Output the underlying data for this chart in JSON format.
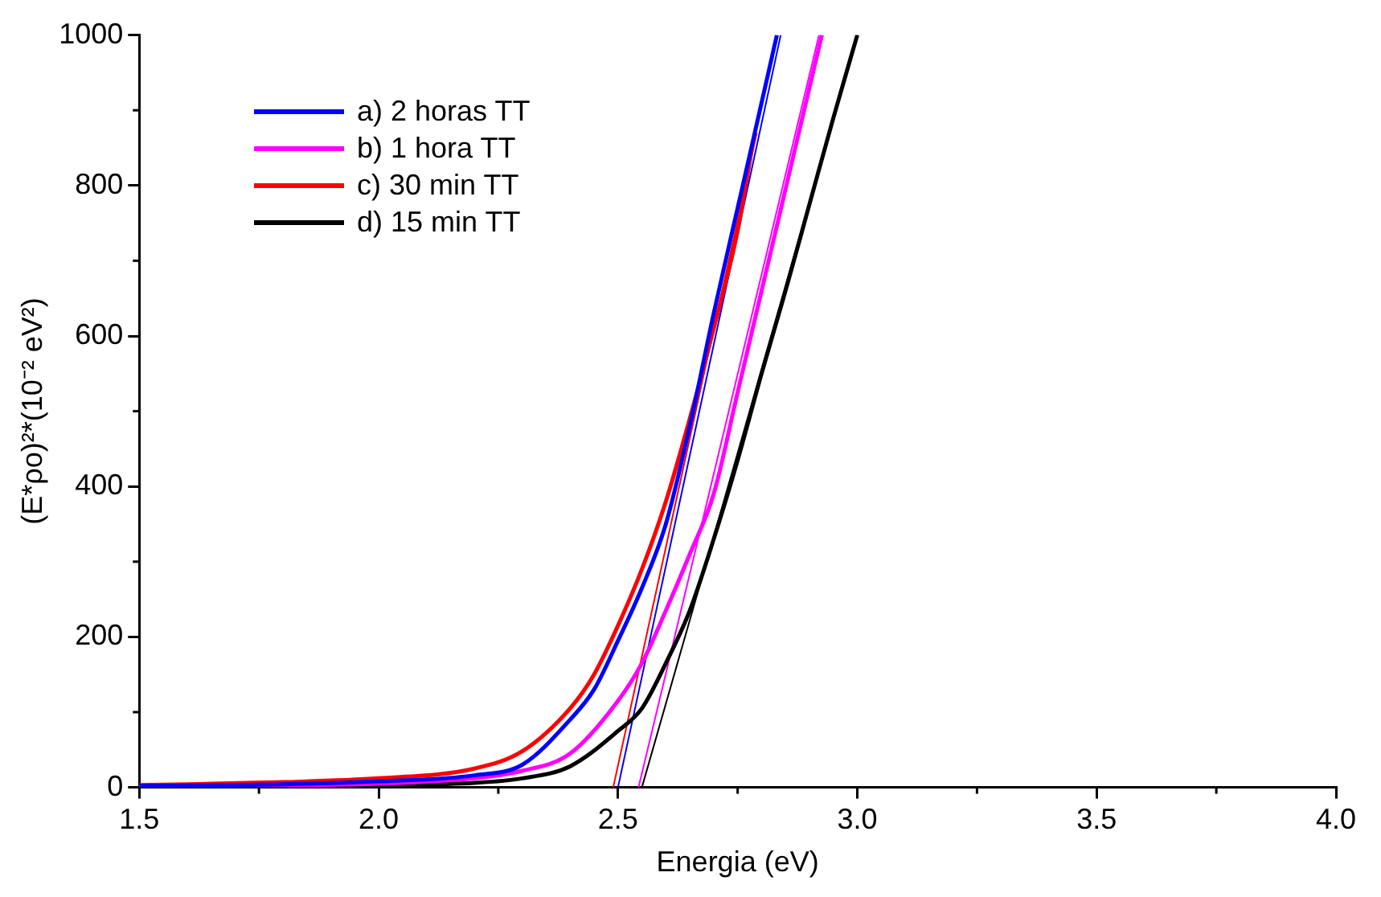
{
  "chart_data": {
    "type": "line",
    "xlabel": "Energia (eV)",
    "ylabel": "(E*ρo)²*(10⁻² eV²)",
    "xlim": [
      1.5,
      4.0
    ],
    "xticks": [
      1.5,
      {
        "value": 2,
        "label": "2.0"
      },
      2.5,
      {
        "value": 3,
        "label": "3.0"
      },
      3.5,
      {
        "value": 4,
        "label": "4.0"
      }
    ],
    "ylim": [
      0,
      1000
    ],
    "yticks": [
      0,
      200,
      400,
      600,
      800,
      1000
    ],
    "grid": false,
    "legend": "top left",
    "marker": "none",
    "line_style": "solid",
    "series": [
      {
        "name": "a) 2 horas TT",
        "color": "#0000ff",
        "x": [
          1.5,
          1.8,
          2.0,
          2.2,
          2.3,
          2.4,
          2.45,
          2.5,
          2.55,
          2.6,
          2.65,
          2.7,
          2.75,
          2.8,
          2.832
        ],
        "values": [
          2,
          4,
          8,
          16,
          30,
          90,
          130,
          195,
          265,
          350,
          480,
          630,
          770,
          910,
          1000
        ]
      },
      {
        "name": "b) 1 hora TT",
        "color": "#ff00ff",
        "x": [
          1.5,
          1.8,
          2.0,
          2.2,
          2.3,
          2.4,
          2.5,
          2.55,
          2.6,
          2.65,
          2.7,
          2.75,
          2.8,
          2.85,
          2.9,
          2.926
        ],
        "values": [
          1,
          3,
          5,
          12,
          22,
          45,
          115,
          165,
          235,
          310,
          390,
          525,
          660,
          795,
          930,
          1000
        ]
      },
      {
        "name": "c) 30 min TT",
        "color": "#ff0000",
        "x": [
          1.5,
          1.8,
          2.0,
          2.2,
          2.3,
          2.4,
          2.45,
          2.5,
          2.55,
          2.6,
          2.65,
          2.7,
          2.75,
          2.78
        ],
        "values": [
          3,
          7,
          12,
          25,
          48,
          105,
          150,
          215,
          290,
          380,
          490,
          610,
          740,
          850
        ]
      },
      {
        "name": "d) 15 min TT",
        "color": "#000000",
        "x": [
          1.5,
          1.8,
          2.0,
          2.2,
          2.3,
          2.4,
          2.5,
          2.55,
          2.6,
          2.65,
          2.7,
          2.75,
          2.8,
          2.85,
          2.9,
          2.95,
          3.0
        ],
        "values": [
          1,
          2,
          3,
          6,
          12,
          28,
          75,
          105,
          165,
          235,
          330,
          435,
          550,
          660,
          775,
          890,
          1000
        ]
      },
      {
        "color": "#0000ff",
        "x": [
          2.5,
          2.84
        ],
        "values": [
          0,
          1000
        ]
      },
      {
        "color": "#ff00ff",
        "x": [
          2.543,
          2.92
        ],
        "values": [
          0,
          1000
        ]
      },
      {
        "color": "#ff0000",
        "x": [
          2.49,
          2.79
        ],
        "values": [
          0,
          870
        ]
      },
      {
        "color": "#000000",
        "x": [
          2.55,
          3.0
        ],
        "values": [
          0,
          1000
        ]
      }
    ]
  }
}
